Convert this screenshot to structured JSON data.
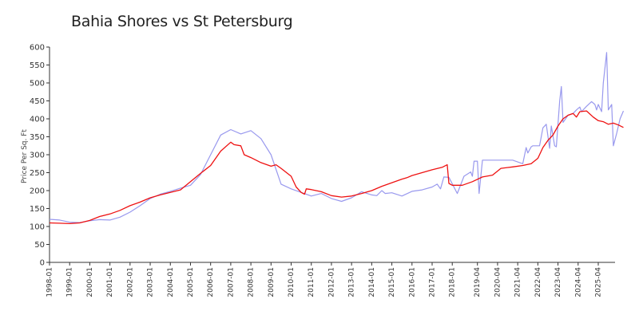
{
  "chart_data": {
    "type": "line",
    "title": "Bahia Shores vs St Petersburg",
    "xlabel": "",
    "ylabel": "Price Per Sq. Ft",
    "ylim": [
      0,
      600
    ],
    "yticks": [
      0,
      50,
      100,
      150,
      200,
      250,
      300,
      350,
      400,
      450,
      500,
      550,
      600
    ],
    "xlim": [
      "1998-01",
      "2026-02"
    ],
    "xticks": [
      "1998-01",
      "1999-01",
      "2000-01",
      "2001-01",
      "2002-01",
      "2003-01",
      "2004-01",
      "2005-01",
      "2006-01",
      "2007-01",
      "2008-01",
      "2009-01",
      "2010-01",
      "2011-01",
      "2012-01",
      "2013-01",
      "2014-01",
      "2015-01",
      "2016-01",
      "2017-01",
      "2018-01",
      "2019-04",
      "2020-04",
      "2021-04",
      "2022-04",
      "2023-04",
      "2024-04",
      "2025-04"
    ],
    "grid": false,
    "series": [
      {
        "color": "#9999ee",
        "points": [
          [
            "1998-01",
            120
          ],
          [
            "1998-07",
            118
          ],
          [
            "1999-01",
            112
          ],
          [
            "1999-07",
            111
          ],
          [
            "2000-01",
            116
          ],
          [
            "2000-07",
            119
          ],
          [
            "2001-01",
            118
          ],
          [
            "2001-07",
            126
          ],
          [
            "2002-01",
            140
          ],
          [
            "2002-07",
            158
          ],
          [
            "2003-01",
            178
          ],
          [
            "2003-07",
            190
          ],
          [
            "2004-01",
            198
          ],
          [
            "2004-07",
            207
          ],
          [
            "2005-01",
            215
          ],
          [
            "2005-07",
            245
          ],
          [
            "2006-01",
            300
          ],
          [
            "2006-07",
            355
          ],
          [
            "2007-01",
            370
          ],
          [
            "2007-07",
            358
          ],
          [
            "2008-01",
            367
          ],
          [
            "2008-07",
            345
          ],
          [
            "2009-01",
            300
          ],
          [
            "2009-07",
            218
          ],
          [
            "2010-01",
            205
          ],
          [
            "2010-07",
            195
          ],
          [
            "2011-01",
            185
          ],
          [
            "2011-07",
            192
          ],
          [
            "2012-01",
            178
          ],
          [
            "2012-07",
            170
          ],
          [
            "2013-01",
            180
          ],
          [
            "2013-07",
            197
          ],
          [
            "2014-01",
            188
          ],
          [
            "2014-04",
            186
          ],
          [
            "2014-07",
            200
          ],
          [
            "2014-09",
            192
          ],
          [
            "2015-01",
            194
          ],
          [
            "2015-07",
            185
          ],
          [
            "2016-01",
            198
          ],
          [
            "2016-07",
            202
          ],
          [
            "2017-01",
            210
          ],
          [
            "2017-04",
            218
          ],
          [
            "2017-06",
            205
          ],
          [
            "2017-08",
            238
          ],
          [
            "2017-11",
            237
          ],
          [
            "2018-04",
            192
          ],
          [
            "2018-08",
            240
          ],
          [
            "2018-12",
            252
          ],
          [
            "2019-01",
            240
          ],
          [
            "2019-02",
            282
          ],
          [
            "2019-04",
            282
          ],
          [
            "2019-05",
            192
          ],
          [
            "2019-07",
            285
          ],
          [
            "2020-06",
            285
          ],
          [
            "2021-01",
            285
          ],
          [
            "2021-07",
            275
          ],
          [
            "2021-09",
            320
          ],
          [
            "2021-10",
            305
          ],
          [
            "2021-12",
            322
          ],
          [
            "2022-01",
            325
          ],
          [
            "2022-05",
            325
          ],
          [
            "2022-07",
            375
          ],
          [
            "2022-09",
            385
          ],
          [
            "2022-11",
            318
          ],
          [
            "2022-12",
            380
          ],
          [
            "2023-02",
            325
          ],
          [
            "2023-03",
            322
          ],
          [
            "2023-05",
            450
          ],
          [
            "2023-06",
            490
          ],
          [
            "2023-07",
            390
          ],
          [
            "2023-10",
            410
          ],
          [
            "2024-01",
            415
          ],
          [
            "2024-03",
            425
          ],
          [
            "2024-05",
            433
          ],
          [
            "2024-06",
            420
          ],
          [
            "2024-09",
            435
          ],
          [
            "2024-12",
            448
          ],
          [
            "2025-02",
            440
          ],
          [
            "2025-03",
            425
          ],
          [
            "2025-04",
            440
          ],
          [
            "2025-06",
            420
          ],
          [
            "2025-07",
            500
          ],
          [
            "2025-09",
            585
          ],
          [
            "2025-10",
            425
          ],
          [
            "2025-12",
            440
          ],
          [
            "2026-01",
            325
          ],
          [
            "2026-03",
            360
          ],
          [
            "2026-05",
            400
          ],
          [
            "2026-07",
            422
          ]
        ]
      },
      {
        "color": "#ee1111",
        "points": [
          [
            "1998-01",
            110
          ],
          [
            "1998-07",
            109
          ],
          [
            "1999-01",
            108
          ],
          [
            "1999-07",
            110
          ],
          [
            "2000-01",
            117
          ],
          [
            "2000-07",
            128
          ],
          [
            "2001-01",
            135
          ],
          [
            "2001-07",
            145
          ],
          [
            "2002-01",
            158
          ],
          [
            "2002-07",
            168
          ],
          [
            "2003-01",
            180
          ],
          [
            "2003-07",
            188
          ],
          [
            "2004-01",
            195
          ],
          [
            "2004-07",
            202
          ],
          [
            "2005-01",
            225
          ],
          [
            "2005-07",
            248
          ],
          [
            "2006-01",
            270
          ],
          [
            "2006-07",
            310
          ],
          [
            "2007-01",
            335
          ],
          [
            "2007-03",
            328
          ],
          [
            "2007-07",
            325
          ],
          [
            "2007-09",
            300
          ],
          [
            "2008-01",
            292
          ],
          [
            "2008-07",
            278
          ],
          [
            "2009-01",
            268
          ],
          [
            "2009-04",
            272
          ],
          [
            "2009-07",
            262
          ],
          [
            "2010-01",
            240
          ],
          [
            "2010-04",
            210
          ],
          [
            "2010-07",
            195
          ],
          [
            "2010-09",
            190
          ],
          [
            "2010-10",
            205
          ],
          [
            "2011-01",
            203
          ],
          [
            "2011-07",
            197
          ],
          [
            "2012-01",
            186
          ],
          [
            "2012-07",
            182
          ],
          [
            "2013-01",
            185
          ],
          [
            "2013-07",
            192
          ],
          [
            "2014-01",
            200
          ],
          [
            "2014-07",
            212
          ],
          [
            "2015-01",
            222
          ],
          [
            "2015-07",
            232
          ],
          [
            "2015-10",
            236
          ],
          [
            "2016-01",
            242
          ],
          [
            "2016-07",
            250
          ],
          [
            "2017-01",
            258
          ],
          [
            "2017-07",
            265
          ],
          [
            "2017-10",
            272
          ],
          [
            "2017-11",
            220
          ],
          [
            "2018-01",
            215
          ],
          [
            "2018-07",
            215
          ],
          [
            "2019-01",
            225
          ],
          [
            "2019-07",
            238
          ],
          [
            "2020-01",
            243
          ],
          [
            "2020-06",
            262
          ],
          [
            "2021-01",
            266
          ],
          [
            "2021-07",
            270
          ],
          [
            "2021-12",
            275
          ],
          [
            "2022-04",
            290
          ],
          [
            "2022-07",
            320
          ],
          [
            "2022-10",
            340
          ],
          [
            "2023-01",
            355
          ],
          [
            "2023-04",
            380
          ],
          [
            "2023-07",
            400
          ],
          [
            "2023-10",
            410
          ],
          [
            "2024-01",
            415
          ],
          [
            "2024-03",
            405
          ],
          [
            "2024-05",
            420
          ],
          [
            "2024-09",
            422
          ],
          [
            "2025-01",
            405
          ],
          [
            "2025-04",
            395
          ],
          [
            "2025-07",
            392
          ],
          [
            "2025-10",
            385
          ],
          [
            "2026-01",
            388
          ],
          [
            "2026-04",
            383
          ],
          [
            "2026-07",
            376
          ]
        ]
      }
    ]
  }
}
